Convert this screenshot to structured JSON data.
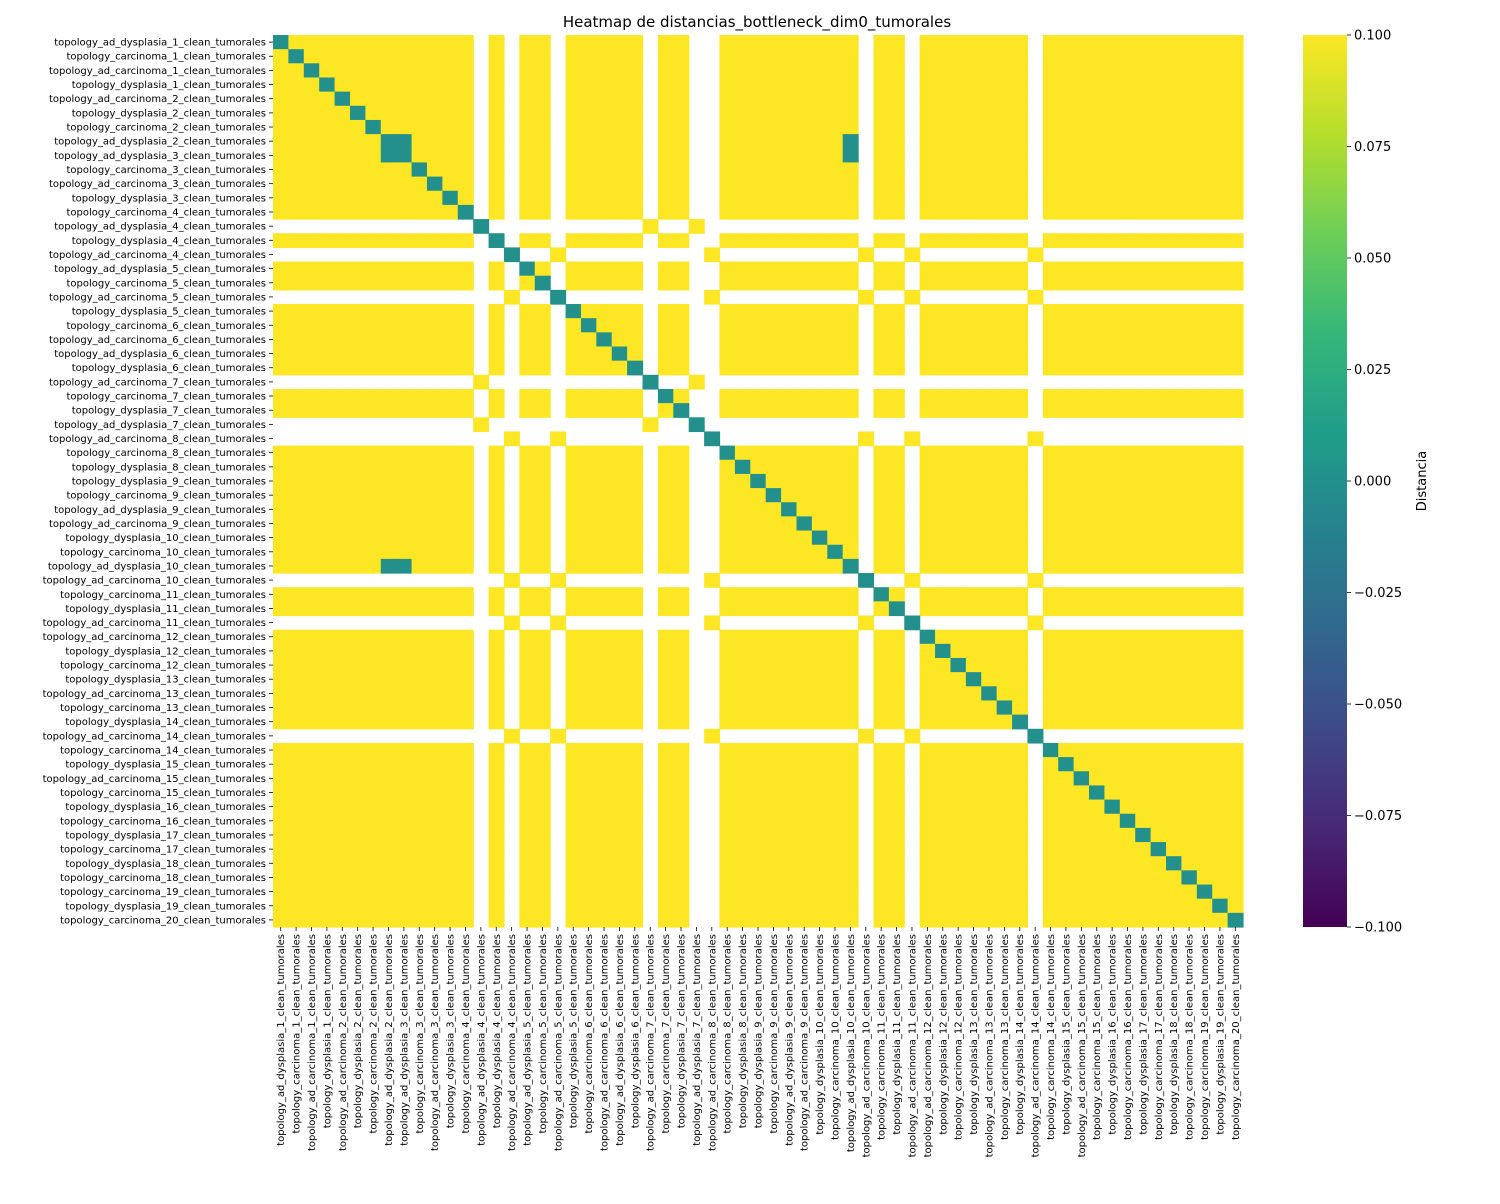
{
  "chart_data": {
    "type": "heatmap",
    "title": "Heatmap de distancias_bottleneck_dim0_tumorales",
    "labels": [
      "topology_ad_dysplasia_1_clean_tumorales",
      "topology_carcinoma_1_clean_tumorales",
      "topology_ad_carcinoma_1_clean_tumorales",
      "topology_dysplasia_1_clean_tumorales",
      "topology_ad_carcinoma_2_clean_tumorales",
      "topology_dysplasia_2_clean_tumorales",
      "topology_carcinoma_2_clean_tumorales",
      "topology_ad_dysplasia_2_clean_tumorales",
      "topology_ad_dysplasia_3_clean_tumorales",
      "topology_carcinoma_3_clean_tumorales",
      "topology_ad_carcinoma_3_clean_tumorales",
      "topology_dysplasia_3_clean_tumorales",
      "topology_carcinoma_4_clean_tumorales",
      "topology_ad_dysplasia_4_clean_tumorales",
      "topology_dysplasia_4_clean_tumorales",
      "topology_ad_carcinoma_4_clean_tumorales",
      "topology_ad_dysplasia_5_clean_tumorales",
      "topology_carcinoma_5_clean_tumorales",
      "topology_ad_carcinoma_5_clean_tumorales",
      "topology_dysplasia_5_clean_tumorales",
      "topology_carcinoma_6_clean_tumorales",
      "topology_ad_carcinoma_6_clean_tumorales",
      "topology_ad_dysplasia_6_clean_tumorales",
      "topology_dysplasia_6_clean_tumorales",
      "topology_ad_carcinoma_7_clean_tumorales",
      "topology_carcinoma_7_clean_tumorales",
      "topology_dysplasia_7_clean_tumorales",
      "topology_ad_dysplasia_7_clean_tumorales",
      "topology_ad_carcinoma_8_clean_tumorales",
      "topology_carcinoma_8_clean_tumorales",
      "topology_dysplasia_8_clean_tumorales",
      "topology_dysplasia_9_clean_tumorales",
      "topology_carcinoma_9_clean_tumorales",
      "topology_ad_dysplasia_9_clean_tumorales",
      "topology_ad_carcinoma_9_clean_tumorales",
      "topology_dysplasia_10_clean_tumorales",
      "topology_carcinoma_10_clean_tumorales",
      "topology_ad_dysplasia_10_clean_tumorales",
      "topology_ad_carcinoma_10_clean_tumorales",
      "topology_carcinoma_11_clean_tumorales",
      "topology_dysplasia_11_clean_tumorales",
      "topology_ad_carcinoma_11_clean_tumorales",
      "topology_ad_carcinoma_12_clean_tumorales",
      "topology_dysplasia_12_clean_tumorales",
      "topology_carcinoma_12_clean_tumorales",
      "topology_dysplasia_13_clean_tumorales",
      "topology_ad_carcinoma_13_clean_tumorales",
      "topology_carcinoma_13_clean_tumorales",
      "topology_dysplasia_14_clean_tumorales",
      "topology_ad_carcinoma_14_clean_tumorales",
      "topology_carcinoma_14_clean_tumorales",
      "topology_dysplasia_15_clean_tumorales",
      "topology_ad_carcinoma_15_clean_tumorales",
      "topology_carcinoma_15_clean_tumorales",
      "topology_dysplasia_16_clean_tumorales",
      "topology_carcinoma_16_clean_tumorales",
      "topology_dysplasia_17_clean_tumorales",
      "topology_carcinoma_17_clean_tumorales",
      "topology_dysplasia_18_clean_tumorales",
      "topology_carcinoma_18_clean_tumorales",
      "topology_carcinoma_19_clean_tumorales",
      "topology_dysplasia_19_clean_tumorales",
      "topology_carcinoma_20_clean_tumorales"
    ],
    "cell_rule": {
      "diagonal_value": 0.0,
      "off_diagonal_value": 0.1,
      "undefined_value": null,
      "undefined_note": "White (NaN) cells wherever exactly one of the pair belongs to the nan_group; cells between two nan_group members are 0.1, except special pairs.",
      "nan_group": [
        "topology_ad_dysplasia_4_clean_tumorales",
        "topology_ad_carcinoma_4_clean_tumorales",
        "topology_ad_carcinoma_5_clean_tumorales",
        "topology_ad_carcinoma_7_clean_tumorales",
        "topology_ad_dysplasia_7_clean_tumorales",
        "topology_ad_carcinoma_8_clean_tumorales",
        "topology_ad_carcinoma_10_clean_tumorales",
        "topology_ad_carcinoma_11_clean_tumorales",
        "topology_ad_carcinoma_14_clean_tumorales"
      ],
      "zero_pairs": [
        [
          "topology_ad_dysplasia_2_clean_tumorales",
          "topology_ad_dysplasia_3_clean_tumorales"
        ],
        [
          "topology_ad_dysplasia_2_clean_tumorales",
          "topology_ad_dysplasia_10_clean_tumorales"
        ],
        [
          "topology_ad_dysplasia_3_clean_tumorales",
          "topology_ad_dysplasia_10_clean_tumorales"
        ]
      ],
      "nan_pairs_within_group": [
        [
          "topology_ad_dysplasia_4_clean_tumorales",
          "topology_ad_carcinoma_4_clean_tumorales"
        ],
        [
          "topology_ad_dysplasia_4_clean_tumorales",
          "topology_ad_carcinoma_5_clean_tumorales"
        ],
        [
          "topology_ad_dysplasia_4_clean_tumorales",
          "topology_ad_carcinoma_8_clean_tumorales"
        ],
        [
          "topology_ad_dysplasia_4_clean_tumorales",
          "topology_ad_carcinoma_10_clean_tumorales"
        ],
        [
          "topology_ad_dysplasia_4_clean_tumorales",
          "topology_ad_carcinoma_11_clean_tumorales"
        ],
        [
          "topology_ad_dysplasia_4_clean_tumorales",
          "topology_ad_carcinoma_14_clean_tumorales"
        ],
        [
          "topology_ad_carcinoma_7_clean_tumorales",
          "topology_ad_carcinoma_4_clean_tumorales"
        ],
        [
          "topology_ad_carcinoma_7_clean_tumorales",
          "topology_ad_carcinoma_5_clean_tumorales"
        ],
        [
          "topology_ad_carcinoma_7_clean_tumorales",
          "topology_ad_carcinoma_8_clean_tumorales"
        ],
        [
          "topology_ad_carcinoma_7_clean_tumorales",
          "topology_ad_carcinoma_10_clean_tumorales"
        ],
        [
          "topology_ad_carcinoma_7_clean_tumorales",
          "topology_ad_carcinoma_11_clean_tumorales"
        ],
        [
          "topology_ad_carcinoma_7_clean_tumorales",
          "topology_ad_carcinoma_14_clean_tumorales"
        ],
        [
          "topology_ad_dysplasia_7_clean_tumorales",
          "topology_ad_carcinoma_4_clean_tumorales"
        ],
        [
          "topology_ad_dysplasia_7_clean_tumorales",
          "topology_ad_carcinoma_5_clean_tumorales"
        ],
        [
          "topology_ad_dysplasia_7_clean_tumorales",
          "topology_ad_carcinoma_8_clean_tumorales"
        ],
        [
          "topology_ad_dysplasia_7_clean_tumorales",
          "topology_ad_carcinoma_10_clean_tumorales"
        ],
        [
          "topology_ad_dysplasia_7_clean_tumorales",
          "topology_ad_carcinoma_11_clean_tumorales"
        ],
        [
          "topology_ad_dysplasia_7_clean_tumorales",
          "topology_ad_carcinoma_14_clean_tumorales"
        ]
      ]
    },
    "colorbar": {
      "label": "Distancia",
      "range": [
        -0.1,
        0.1
      ],
      "ticks": [
        "0.100",
        "0.075",
        "0.050",
        "0.025",
        "0.000",
        "−0.025",
        "−0.050",
        "−0.075",
        "−0.100"
      ],
      "colormap": "viridis",
      "stops": [
        "#440154",
        "#482878",
        "#3e4989",
        "#31688e",
        "#26828e",
        "#1f9e89",
        "#35b779",
        "#6ece58",
        "#b5de2b",
        "#fde725"
      ]
    }
  }
}
